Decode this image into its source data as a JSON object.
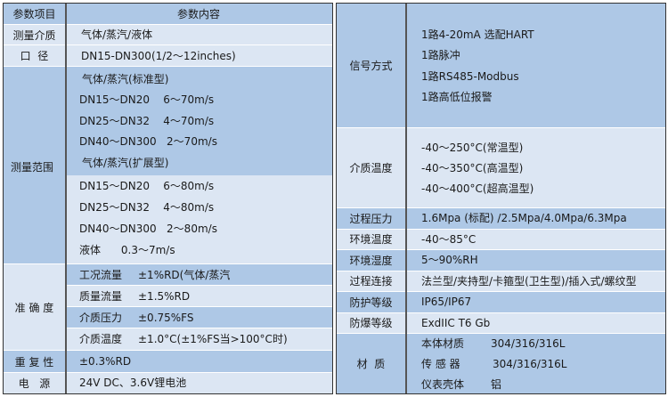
{
  "left": {
    "header": {
      "item": "参数项目",
      "content": "参数内容"
    },
    "medium": {
      "label": "测量介质",
      "value": "气体/蒸汽/液体"
    },
    "diameter": {
      "label": "口  径",
      "value": "DN15-DN300(1/2～12inches)"
    },
    "range": {
      "label": "测量范围",
      "lines": [
        "气体/蒸汽(标准型)",
        "DN15～DN20    6～70m/s",
        "DN25～DN32    4～70m/s",
        "DN40～DN300   2～70m/s",
        "气体/蒸汽(扩展型)",
        "DN15～DN20    6～80m/s",
        "DN25～DN32    4～80m/s",
        "DN40～DN300   2～80m/s",
        "液体      0.3～7m/s"
      ]
    },
    "accuracy": {
      "label": "准 确 度",
      "rows": [
        {
          "name": "工况流量",
          "value": "±1%RD(气体/蒸汽"
        },
        {
          "name": "质量流量",
          "value": "±1.5%RD"
        },
        {
          "name": "介质压力",
          "value": "±0.75%FS"
        },
        {
          "name": "介质温度",
          "value": "±1.0°C(±1%FS当>100°C时)"
        }
      ]
    },
    "repeatability": {
      "label": "重 复 性",
      "value": "±0.3%RD"
    },
    "power": {
      "label": "电   源",
      "value": "24V DC、3.6V锂电池"
    }
  },
  "right": {
    "signal": {
      "label": "信号方式",
      "lines": [
        "1路4-20mA 选配HART",
        "1路脉冲",
        "1路RS485-Modbus",
        "1路高低位报警"
      ]
    },
    "medium_temp": {
      "label": "介质温度",
      "lines": [
        "-40～250°C(常温型)",
        "-40～350°C(高温型)",
        "-40～400°C(超高温型)"
      ]
    },
    "rows": [
      {
        "label": "过程压力",
        "value": "1.6Mpa (标配) /2.5Mpa/4.0Mpa/6.3Mpa"
      },
      {
        "label": "环境温度",
        "value": "-40～85°C"
      },
      {
        "label": "环境湿度",
        "value": "5～90%RH"
      },
      {
        "label": "过程连接",
        "value": "法兰型/夹持型/卡箍型(卫生型)/插入式/螺纹型"
      },
      {
        "label": "防护等级",
        "value": "IP65/IP67"
      },
      {
        "label": "防爆等级",
        "value": "ExdIIC T6 Gb"
      }
    ],
    "material": {
      "label": "材  质",
      "rows": [
        {
          "name": "本体材质",
          "value": "304/316/316L"
        },
        {
          "name": "传 感 器",
          "value": "304/316/316L"
        },
        {
          "name": "仪表壳体",
          "value": "铝"
        }
      ]
    }
  },
  "colors": {
    "dark": "#aec8e6",
    "light": "#dce6f3"
  }
}
